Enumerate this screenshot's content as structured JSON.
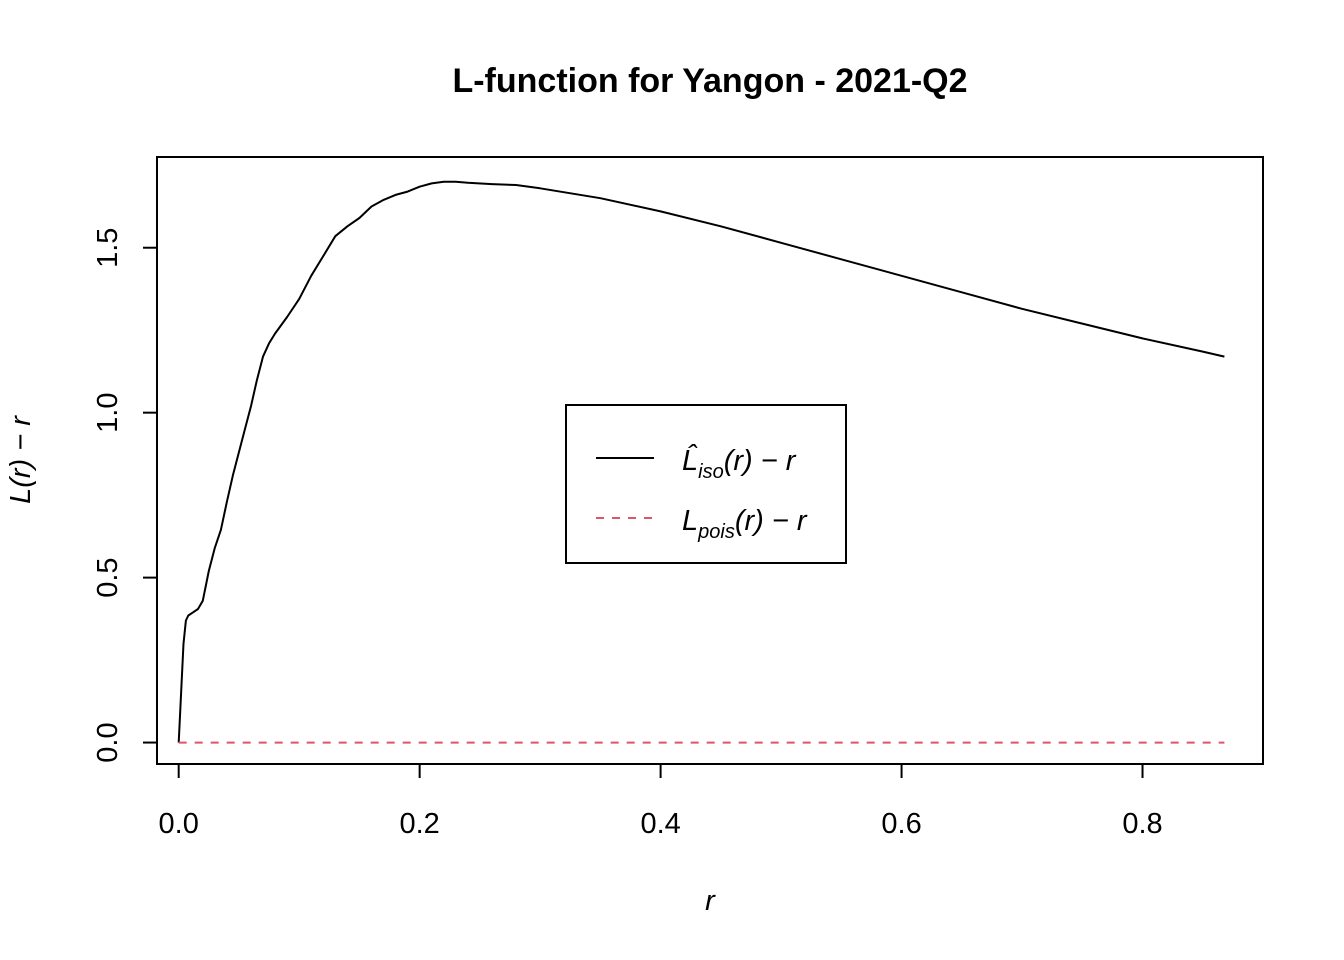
{
  "chart_data": {
    "type": "line",
    "title": "L-function for Yangon - 2021-Q2",
    "xlabel": "r",
    "ylabel": "L(r) − r",
    "xlim": [
      -0.018,
      0.9
    ],
    "ylim": [
      -0.065,
      1.775
    ],
    "xticks": [
      0.0,
      0.2,
      0.4,
      0.6,
      0.8
    ],
    "xtick_labels": [
      "0.0",
      "0.2",
      "0.4",
      "0.6",
      "0.8"
    ],
    "yticks": [
      0.0,
      0.5,
      1.0,
      1.5
    ],
    "ytick_labels": [
      "0.0",
      "0.5",
      "1.0",
      "1.5"
    ],
    "grid": false,
    "legend_position": "center",
    "series": [
      {
        "name": "L̂iso(r) − r",
        "legend": {
          "main": "L̂",
          "sub": "iso",
          "rest": "(r) − r"
        },
        "color": "#000000",
        "dash": "solid",
        "points": [
          [
            0.0,
            0.0
          ],
          [
            0.002,
            0.15
          ],
          [
            0.004,
            0.3
          ],
          [
            0.006,
            0.37
          ],
          [
            0.008,
            0.385
          ],
          [
            0.012,
            0.395
          ],
          [
            0.016,
            0.405
          ],
          [
            0.02,
            0.43
          ],
          [
            0.025,
            0.52
          ],
          [
            0.03,
            0.59
          ],
          [
            0.035,
            0.645
          ],
          [
            0.04,
            0.73
          ],
          [
            0.045,
            0.81
          ],
          [
            0.05,
            0.88
          ],
          [
            0.055,
            0.95
          ],
          [
            0.06,
            1.02
          ],
          [
            0.065,
            1.1
          ],
          [
            0.07,
            1.17
          ],
          [
            0.075,
            1.21
          ],
          [
            0.08,
            1.24
          ],
          [
            0.09,
            1.29
          ],
          [
            0.1,
            1.345
          ],
          [
            0.11,
            1.415
          ],
          [
            0.12,
            1.475
          ],
          [
            0.13,
            1.535
          ],
          [
            0.14,
            1.565
          ],
          [
            0.15,
            1.59
          ],
          [
            0.16,
            1.625
          ],
          [
            0.17,
            1.645
          ],
          [
            0.18,
            1.66
          ],
          [
            0.19,
            1.67
          ],
          [
            0.2,
            1.685
          ],
          [
            0.21,
            1.695
          ],
          [
            0.22,
            1.7
          ],
          [
            0.23,
            1.7
          ],
          [
            0.24,
            1.697
          ],
          [
            0.26,
            1.693
          ],
          [
            0.28,
            1.69
          ],
          [
            0.3,
            1.68
          ],
          [
            0.35,
            1.65
          ],
          [
            0.4,
            1.61
          ],
          [
            0.45,
            1.565
          ],
          [
            0.5,
            1.515
          ],
          [
            0.55,
            1.465
          ],
          [
            0.6,
            1.415
          ],
          [
            0.65,
            1.365
          ],
          [
            0.7,
            1.315
          ],
          [
            0.75,
            1.27
          ],
          [
            0.8,
            1.225
          ],
          [
            0.85,
            1.185
          ],
          [
            0.868,
            1.17
          ]
        ]
      },
      {
        "name": "Lpois(r) − r",
        "legend": {
          "main": "L",
          "sub": "pois",
          "rest": "(r) − r"
        },
        "color": "#DF536B",
        "dash": "dashed",
        "points": [
          [
            0.0,
            0.0
          ],
          [
            0.868,
            0.0
          ]
        ]
      }
    ]
  }
}
